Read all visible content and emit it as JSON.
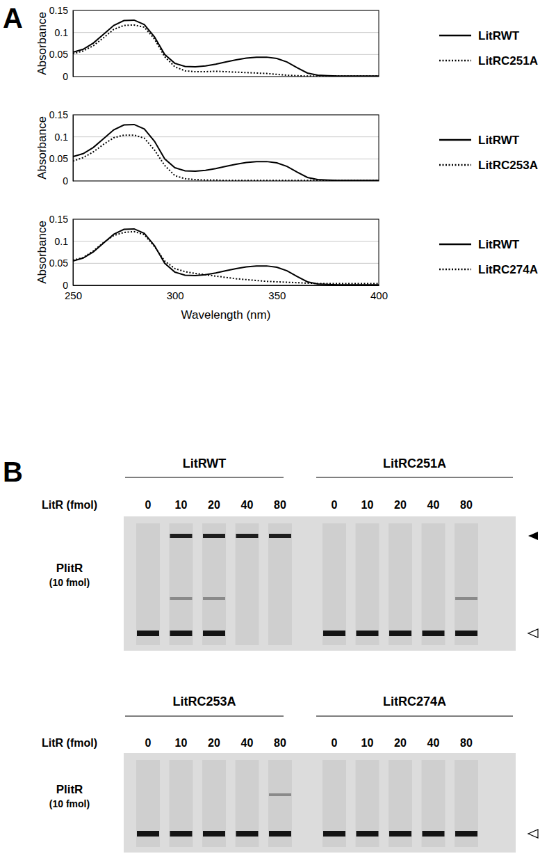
{
  "panel_labels": [
    "A",
    "B"
  ],
  "chart_data": [
    {
      "type": "line",
      "x": [
        250,
        255,
        260,
        265,
        270,
        275,
        280,
        285,
        290,
        295,
        300,
        305,
        310,
        315,
        320,
        325,
        330,
        335,
        340,
        345,
        350,
        355,
        360,
        365,
        370,
        375,
        380,
        385,
        390,
        395,
        400
      ],
      "xlim": [
        250,
        400
      ],
      "xticks": [
        250,
        300,
        350,
        400
      ],
      "ylim": [
        0,
        0.15
      ],
      "yticks": [
        0,
        0.05,
        0.1,
        0.15
      ],
      "y_label": "Absorbance",
      "grid": "y",
      "tick_labels": "y",
      "legend": "right",
      "series": [
        {
          "name": "LitRWT",
          "color": "#000000",
          "line_style": "solid",
          "values": [
            0.055,
            0.062,
            0.076,
            0.096,
            0.116,
            0.127,
            0.128,
            0.118,
            0.09,
            0.05,
            0.03,
            0.023,
            0.022,
            0.024,
            0.028,
            0.033,
            0.038,
            0.042,
            0.044,
            0.044,
            0.041,
            0.033,
            0.02,
            0.008,
            0.003,
            0.002,
            0.001,
            0.001,
            0.001,
            0.001,
            0.001
          ]
        },
        {
          "name": "LitRC251A",
          "color": "#000000",
          "line_style": "dotted",
          "values": [
            0.052,
            0.058,
            0.07,
            0.088,
            0.107,
            0.116,
            0.117,
            0.112,
            0.085,
            0.045,
            0.022,
            0.013,
            0.011,
            0.011,
            0.012,
            0.011,
            0.01,
            0.009,
            0.008,
            0.007,
            0.005,
            0.003,
            0.002,
            0.001,
            0.001,
            0.001,
            0.001,
            0.001,
            0.001,
            0.001,
            0.001
          ]
        }
      ]
    },
    {
      "type": "line",
      "x": [
        250,
        255,
        260,
        265,
        270,
        275,
        280,
        285,
        290,
        295,
        300,
        305,
        310,
        315,
        320,
        325,
        330,
        335,
        340,
        345,
        350,
        355,
        360,
        365,
        370,
        375,
        380,
        385,
        390,
        395,
        400
      ],
      "xlim": [
        250,
        400
      ],
      "xticks": [
        250,
        300,
        350,
        400
      ],
      "ylim": [
        0,
        0.15
      ],
      "yticks": [
        0,
        0.05,
        0.1,
        0.15
      ],
      "y_label": "Absorbance",
      "grid": "y",
      "tick_labels": "y",
      "legend": "right",
      "series": [
        {
          "name": "LitRWT",
          "color": "#000000",
          "line_style": "solid",
          "values": [
            0.055,
            0.062,
            0.076,
            0.096,
            0.116,
            0.127,
            0.128,
            0.118,
            0.09,
            0.05,
            0.03,
            0.023,
            0.022,
            0.024,
            0.028,
            0.033,
            0.038,
            0.042,
            0.044,
            0.044,
            0.041,
            0.033,
            0.02,
            0.008,
            0.003,
            0.002,
            0.001,
            0.001,
            0.001,
            0.001,
            0.001
          ]
        },
        {
          "name": "LitRC253A",
          "color": "#000000",
          "line_style": "dotted",
          "values": [
            0.045,
            0.053,
            0.066,
            0.083,
            0.098,
            0.104,
            0.104,
            0.097,
            0.07,
            0.035,
            0.012,
            0.005,
            0.003,
            0.002,
            0.002,
            0.001,
            0.001,
            0.001,
            0.001,
            0.001,
            0.001,
            0.001,
            0.001,
            0.001,
            0.001,
            0.001,
            0.001,
            0.001,
            0.001,
            0.001,
            0.001
          ]
        }
      ]
    },
    {
      "type": "line",
      "x": [
        250,
        255,
        260,
        265,
        270,
        275,
        280,
        285,
        290,
        295,
        300,
        305,
        310,
        315,
        320,
        325,
        330,
        335,
        340,
        345,
        350,
        355,
        360,
        365,
        370,
        375,
        380,
        385,
        390,
        395,
        400
      ],
      "xlim": [
        250,
        400
      ],
      "xticks": [
        250,
        300,
        350,
        400
      ],
      "ylim": [
        0,
        0.15
      ],
      "yticks": [
        0,
        0.05,
        0.1,
        0.15
      ],
      "x_label": "Wavelength (nm)",
      "y_label": "Absorbance",
      "grid": "y",
      "tick_labels": true,
      "legend": "right",
      "series": [
        {
          "name": "LitRWT",
          "color": "#000000",
          "line_style": "solid",
          "values": [
            0.055,
            0.062,
            0.076,
            0.096,
            0.116,
            0.127,
            0.128,
            0.118,
            0.09,
            0.05,
            0.03,
            0.023,
            0.022,
            0.024,
            0.028,
            0.033,
            0.038,
            0.042,
            0.044,
            0.044,
            0.041,
            0.033,
            0.02,
            0.008,
            0.003,
            0.002,
            0.001,
            0.001,
            0.001,
            0.001,
            0.001
          ]
        },
        {
          "name": "LitRC274A",
          "color": "#000000",
          "line_style": "dotted",
          "values": [
            0.057,
            0.063,
            0.078,
            0.097,
            0.113,
            0.12,
            0.122,
            0.115,
            0.088,
            0.055,
            0.038,
            0.031,
            0.027,
            0.024,
            0.021,
            0.018,
            0.015,
            0.013,
            0.011,
            0.009,
            0.008,
            0.007,
            0.006,
            0.005,
            0.004,
            0.004,
            0.004,
            0.004,
            0.004,
            0.004,
            0.004
          ]
        }
      ]
    }
  ],
  "gels": [
    {
      "lanes_label": "LitR (fmol)",
      "probe_label": "PlitR",
      "probe_amount": "(10 fmol)",
      "groups": [
        {
          "name": "LitRWT",
          "amounts": [
            0,
            10,
            20,
            40,
            80
          ],
          "complex": [
            false,
            true,
            true,
            true,
            true
          ],
          "intermediate": [
            false,
            true,
            true,
            false,
            false
          ],
          "free": [
            true,
            true,
            true,
            false,
            false
          ]
        },
        {
          "name": "LitRC251A",
          "amounts": [
            0,
            10,
            20,
            40,
            80
          ],
          "complex": [
            false,
            false,
            false,
            false,
            false
          ],
          "intermediate": [
            false,
            false,
            false,
            false,
            true
          ],
          "free": [
            true,
            true,
            true,
            true,
            true
          ]
        }
      ]
    },
    {
      "lanes_label": "LitR (fmol)",
      "probe_label": "PlitR",
      "probe_amount": "(10 fmol)",
      "groups": [
        {
          "name": "LitRC253A",
          "amounts": [
            0,
            10,
            20,
            40,
            80
          ],
          "complex": [
            false,
            false,
            false,
            false,
            false
          ],
          "intermediate": [
            false,
            false,
            false,
            false,
            true
          ],
          "free": [
            true,
            true,
            true,
            true,
            true
          ]
        },
        {
          "name": "LitRC274A",
          "amounts": [
            0,
            10,
            20,
            40,
            80
          ],
          "complex": [
            false,
            false,
            false,
            false,
            false
          ],
          "intermediate": [
            false,
            false,
            false,
            false,
            false
          ],
          "free": [
            true,
            true,
            true,
            true,
            true
          ]
        }
      ]
    }
  ]
}
